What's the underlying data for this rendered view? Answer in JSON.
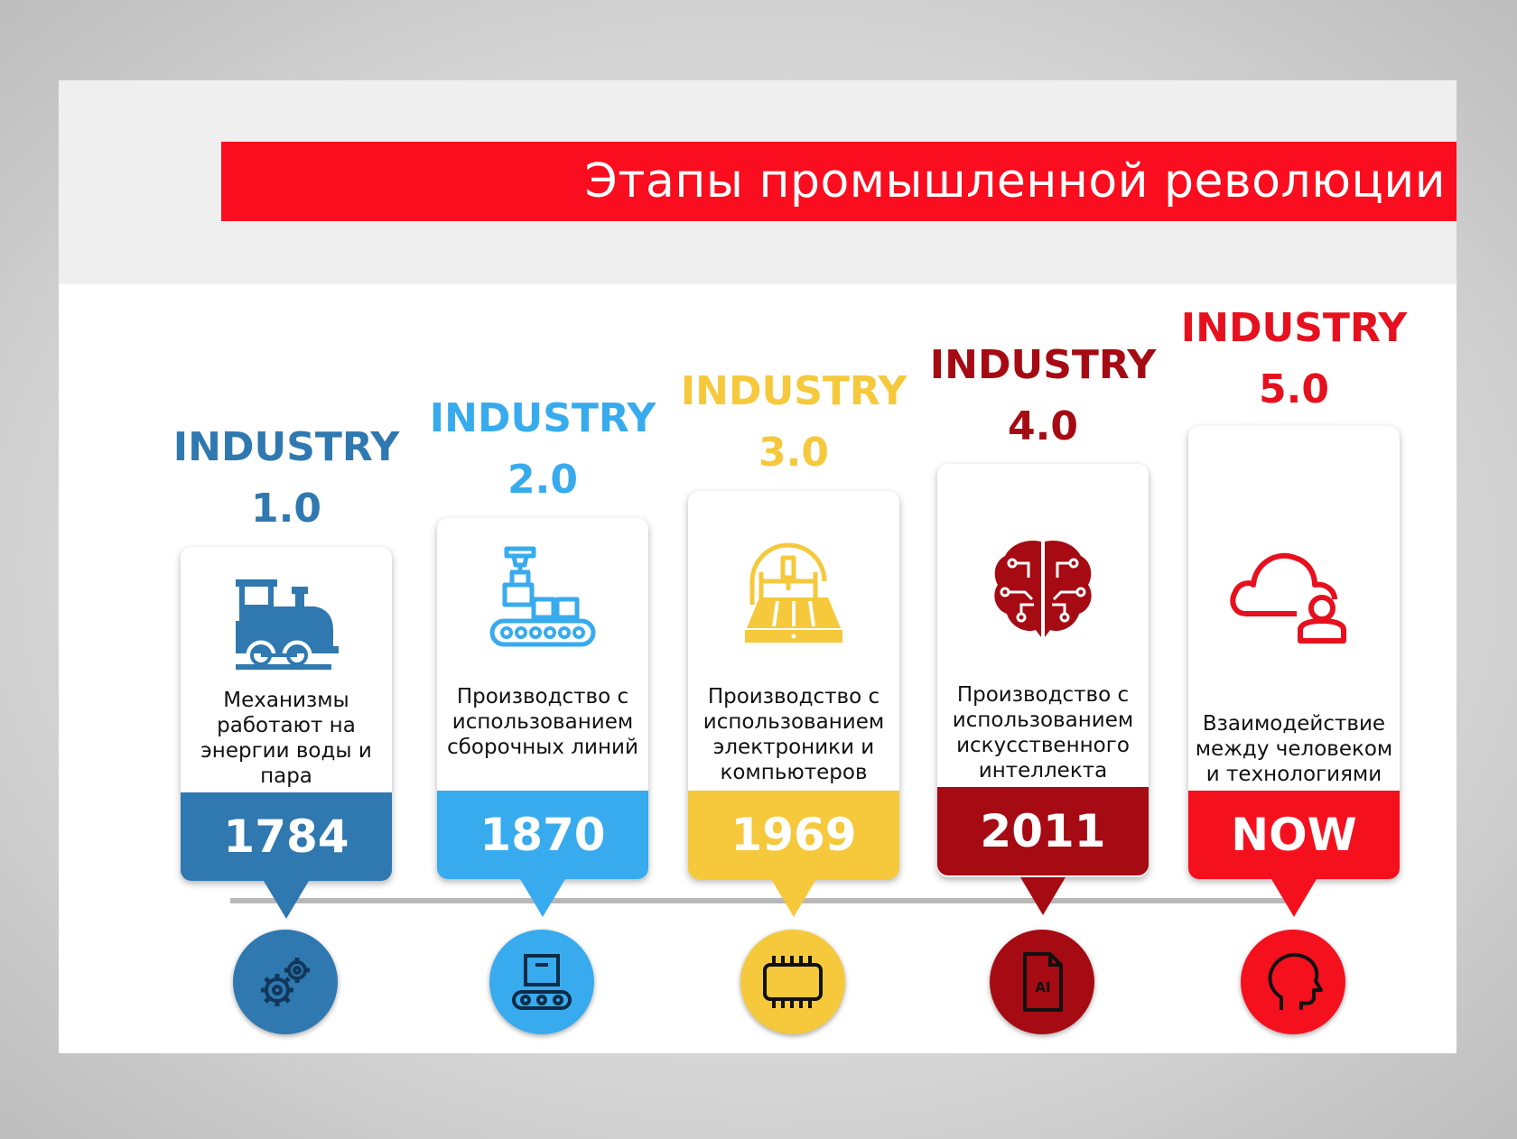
{
  "title": "Этапы промышленной революции",
  "stages": [
    {
      "heading": "INDUSTRY",
      "version": "1.0",
      "description": "Механизмы работают на энергии воды и пара",
      "year": "1784",
      "color": "#2f78b0",
      "icon": "steam-locomotive-icon",
      "circle_icon": "gears-icon"
    },
    {
      "heading": "INDUSTRY",
      "version": "2.0",
      "description": "Производство с использованием сборочных линий",
      "year": "1870",
      "color": "#38abee",
      "icon": "assembly-line-icon",
      "circle_icon": "conveyor-box-icon"
    },
    {
      "heading": "INDUSTRY",
      "version": "3.0",
      "description": "Производство с использованием электроники и компьютеров",
      "year": "1969",
      "color": "#f5c93b",
      "icon": "cnc-machine-icon",
      "circle_icon": "microchip-icon"
    },
    {
      "heading": "INDUSTRY",
      "version": "4.0",
      "description": "Производство с использованием искусственного интеллекта",
      "year": "2011",
      "color": "#a60a12",
      "icon": "circuit-brain-icon",
      "circle_icon": "ai-file-icon",
      "circle_icon_label": "AI"
    },
    {
      "heading": "INDUSTRY",
      "version": "5.0",
      "description": "Взаимодействие между человеком и технологиями",
      "year": "NOW",
      "color": "#f5101e",
      "icon": "cloud-user-icon",
      "circle_icon": "human-head-icon"
    }
  ]
}
